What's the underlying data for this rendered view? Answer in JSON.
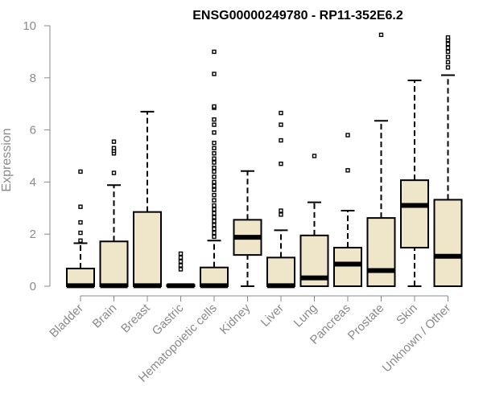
{
  "chart_data": {
    "type": "boxplot",
    "title": "ENSG00000249780 - RP11-352E6.2",
    "xlabel": "",
    "ylabel": "Expression",
    "ylim": [
      0,
      10
    ],
    "yticks": [
      0,
      2,
      4,
      6,
      8,
      10
    ],
    "box_fill": "#efe6c9",
    "box_stroke": "#000000",
    "axis_color": "#8a8a8a",
    "categories": [
      "Bladder",
      "Brain",
      "Breast",
      "Gastric",
      "Hematopoietic cells",
      "Kidney",
      "Liver",
      "Lung",
      "Pancreas",
      "Prostate",
      "Skin",
      "Unknown / Other"
    ],
    "boxes": [
      {
        "q1": 0,
        "median": 0.02,
        "q3": 0.68,
        "whisker_low": 0,
        "whisker_high": 1.65,
        "outliers": [
          1.75,
          2.05,
          2.45,
          3.05,
          4.4
        ]
      },
      {
        "q1": 0,
        "median": 0.02,
        "q3": 1.72,
        "whisker_low": 0,
        "whisker_high": 3.88,
        "outliers": [
          4.35,
          5.1,
          5.2,
          5.3,
          5.55
        ]
      },
      {
        "q1": 0,
        "median": 0.02,
        "q3": 2.85,
        "whisker_low": 0,
        "whisker_high": 6.7,
        "outliers": []
      },
      {
        "q1": 0,
        "median": 0.02,
        "q3": 0.05,
        "whisker_low": 0,
        "whisker_high": 0.05,
        "outliers": [
          0.65,
          0.8,
          0.95,
          1.1,
          1.25
        ]
      },
      {
        "q1": 0,
        "median": 0.02,
        "q3": 0.72,
        "whisker_low": 0,
        "whisker_high": 1.75,
        "outliers": [
          1.9,
          2.05,
          2.2,
          2.35,
          2.5,
          2.65,
          2.8,
          2.95,
          3.1,
          3.3,
          3.5,
          3.7,
          3.85,
          4.0,
          4.2,
          4.4,
          4.55,
          4.75,
          4.9,
          5.1,
          5.3,
          5.5,
          5.9,
          6.2,
          6.4,
          6.85,
          6.9,
          8.15,
          9.0
        ]
      },
      {
        "q1": 1.2,
        "median": 1.88,
        "q3": 2.55,
        "whisker_low": 0,
        "whisker_high": 4.42,
        "outliers": []
      },
      {
        "q1": 0,
        "median": 0.02,
        "q3": 1.1,
        "whisker_low": 0,
        "whisker_high": 2.15,
        "outliers": [
          2.75,
          2.9,
          4.7,
          5.6,
          6.2,
          6.65
        ]
      },
      {
        "q1": 0,
        "median": 0.32,
        "q3": 1.95,
        "whisker_low": 0,
        "whisker_high": 3.22,
        "outliers": [
          5.0
        ]
      },
      {
        "q1": 0,
        "median": 0.85,
        "q3": 1.48,
        "whisker_low": 0,
        "whisker_high": 2.9,
        "outliers": [
          4.45,
          5.8
        ]
      },
      {
        "q1": 0,
        "median": 0.6,
        "q3": 2.62,
        "whisker_low": 0,
        "whisker_high": 6.35,
        "outliers": [
          9.65
        ]
      },
      {
        "q1": 1.48,
        "median": 3.1,
        "q3": 4.07,
        "whisker_low": 0,
        "whisker_high": 7.9,
        "outliers": []
      },
      {
        "q1": 0,
        "median": 1.15,
        "q3": 3.32,
        "whisker_low": 0,
        "whisker_high": 8.1,
        "outliers": [
          8.4,
          8.6,
          8.8,
          9.0,
          9.15,
          9.3,
          9.45,
          9.55
        ]
      }
    ]
  }
}
